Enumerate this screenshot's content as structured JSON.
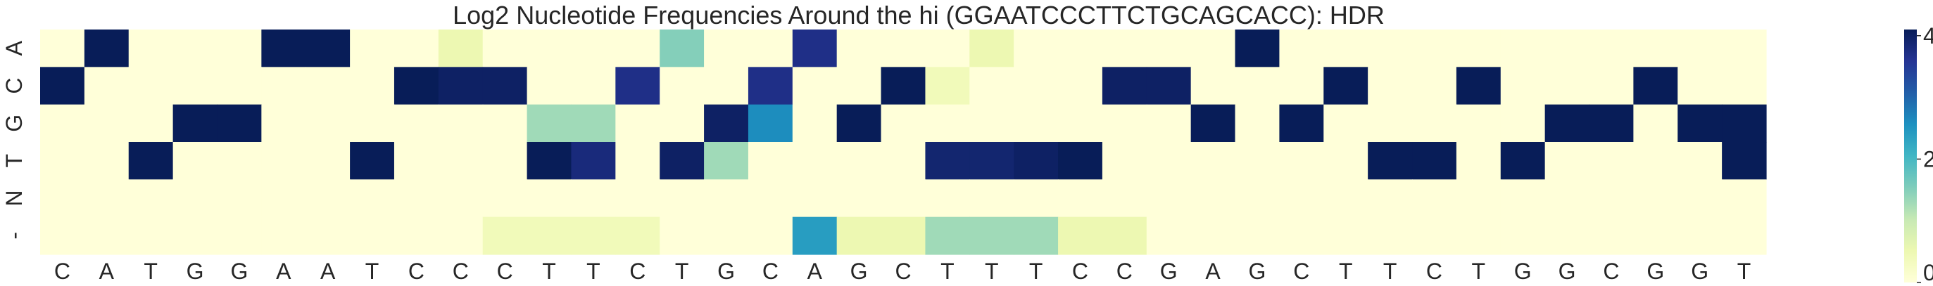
{
  "chart_data": {
    "type": "heatmap",
    "title": "Log2 Nucleotide Frequencies Around the hi (GGAATCCCTTCTGCAGCACC): HDR",
    "row_labels": [
      "A",
      "C",
      "G",
      "T",
      "N",
      "-"
    ],
    "col_labels": [
      "C",
      "A",
      "T",
      "G",
      "G",
      "A",
      "A",
      "T",
      "C",
      "C",
      "C",
      "T",
      "T",
      "C",
      "T",
      "G",
      "C",
      "A",
      "G",
      "C",
      "T",
      "T",
      "T",
      "C",
      "C",
      "G",
      "A",
      "G",
      "C",
      "T",
      "T",
      "C",
      "T",
      "G",
      "G",
      "C",
      "G",
      "G",
      "T"
    ],
    "colorbar": {
      "min": 0,
      "max": 4.1,
      "ticks": [
        0,
        2,
        4
      ],
      "colormap": "YlGnBu"
    },
    "values": [
      [
        0,
        4.1,
        0,
        0,
        0,
        4.1,
        4.1,
        0,
        0,
        0.5,
        0,
        0,
        0,
        0,
        1.5,
        0,
        0,
        3.7,
        0,
        0,
        0,
        0.5,
        0,
        0,
        0,
        0,
        0,
        4.1,
        0,
        0,
        0,
        0,
        0,
        0,
        0,
        0,
        0,
        0,
        0
      ],
      [
        4.1,
        0,
        0,
        0,
        0,
        0,
        0,
        0,
        4.1,
        4.0,
        4.0,
        0,
        0,
        3.7,
        0,
        0,
        3.7,
        0,
        0,
        4.1,
        0.4,
        0,
        0,
        0,
        4.0,
        4.0,
        0,
        0,
        0,
        4.1,
        0,
        0,
        4.1,
        0,
        0,
        0,
        4.1,
        0,
        0
      ],
      [
        0,
        0,
        0,
        4.1,
        4.1,
        0,
        0,
        0,
        0,
        0,
        0,
        1.3,
        1.3,
        0,
        0,
        4.0,
        2.6,
        0,
        4.1,
        0,
        0,
        0,
        0,
        0,
        0,
        0,
        4.1,
        0,
        4.1,
        0,
        0,
        0,
        0,
        0,
        4.1,
        4.1,
        0,
        4.1,
        4.1
      ],
      [
        0,
        0,
        4.1,
        0,
        0,
        0,
        0,
        4.1,
        0,
        0,
        0,
        4.1,
        3.8,
        0,
        4.0,
        1.3,
        0,
        0,
        0,
        0,
        3.9,
        3.9,
        4.0,
        4.1,
        0,
        0,
        0,
        0,
        0,
        0,
        4.1,
        4.1,
        0,
        4.1,
        0,
        0,
        0,
        0,
        4.1
      ],
      [
        0,
        0,
        0,
        0,
        0,
        0,
        0,
        0,
        0,
        0,
        0,
        0,
        0,
        0,
        0,
        0,
        0,
        0,
        0,
        0,
        0,
        0,
        0,
        0,
        0,
        0,
        0,
        0,
        0,
        0,
        0,
        0,
        0,
        0,
        0,
        0,
        0,
        0,
        0
      ],
      [
        0,
        0,
        0,
        0,
        0,
        0,
        0,
        0,
        0,
        0,
        0.4,
        0.4,
        0.4,
        0.4,
        0,
        0,
        0,
        2.4,
        0.5,
        0.5,
        1.3,
        1.3,
        1.3,
        0.5,
        0.5,
        0,
        0,
        0,
        0,
        0,
        0,
        0,
        0,
        0,
        0,
        0,
        0,
        0,
        0
      ]
    ]
  }
}
